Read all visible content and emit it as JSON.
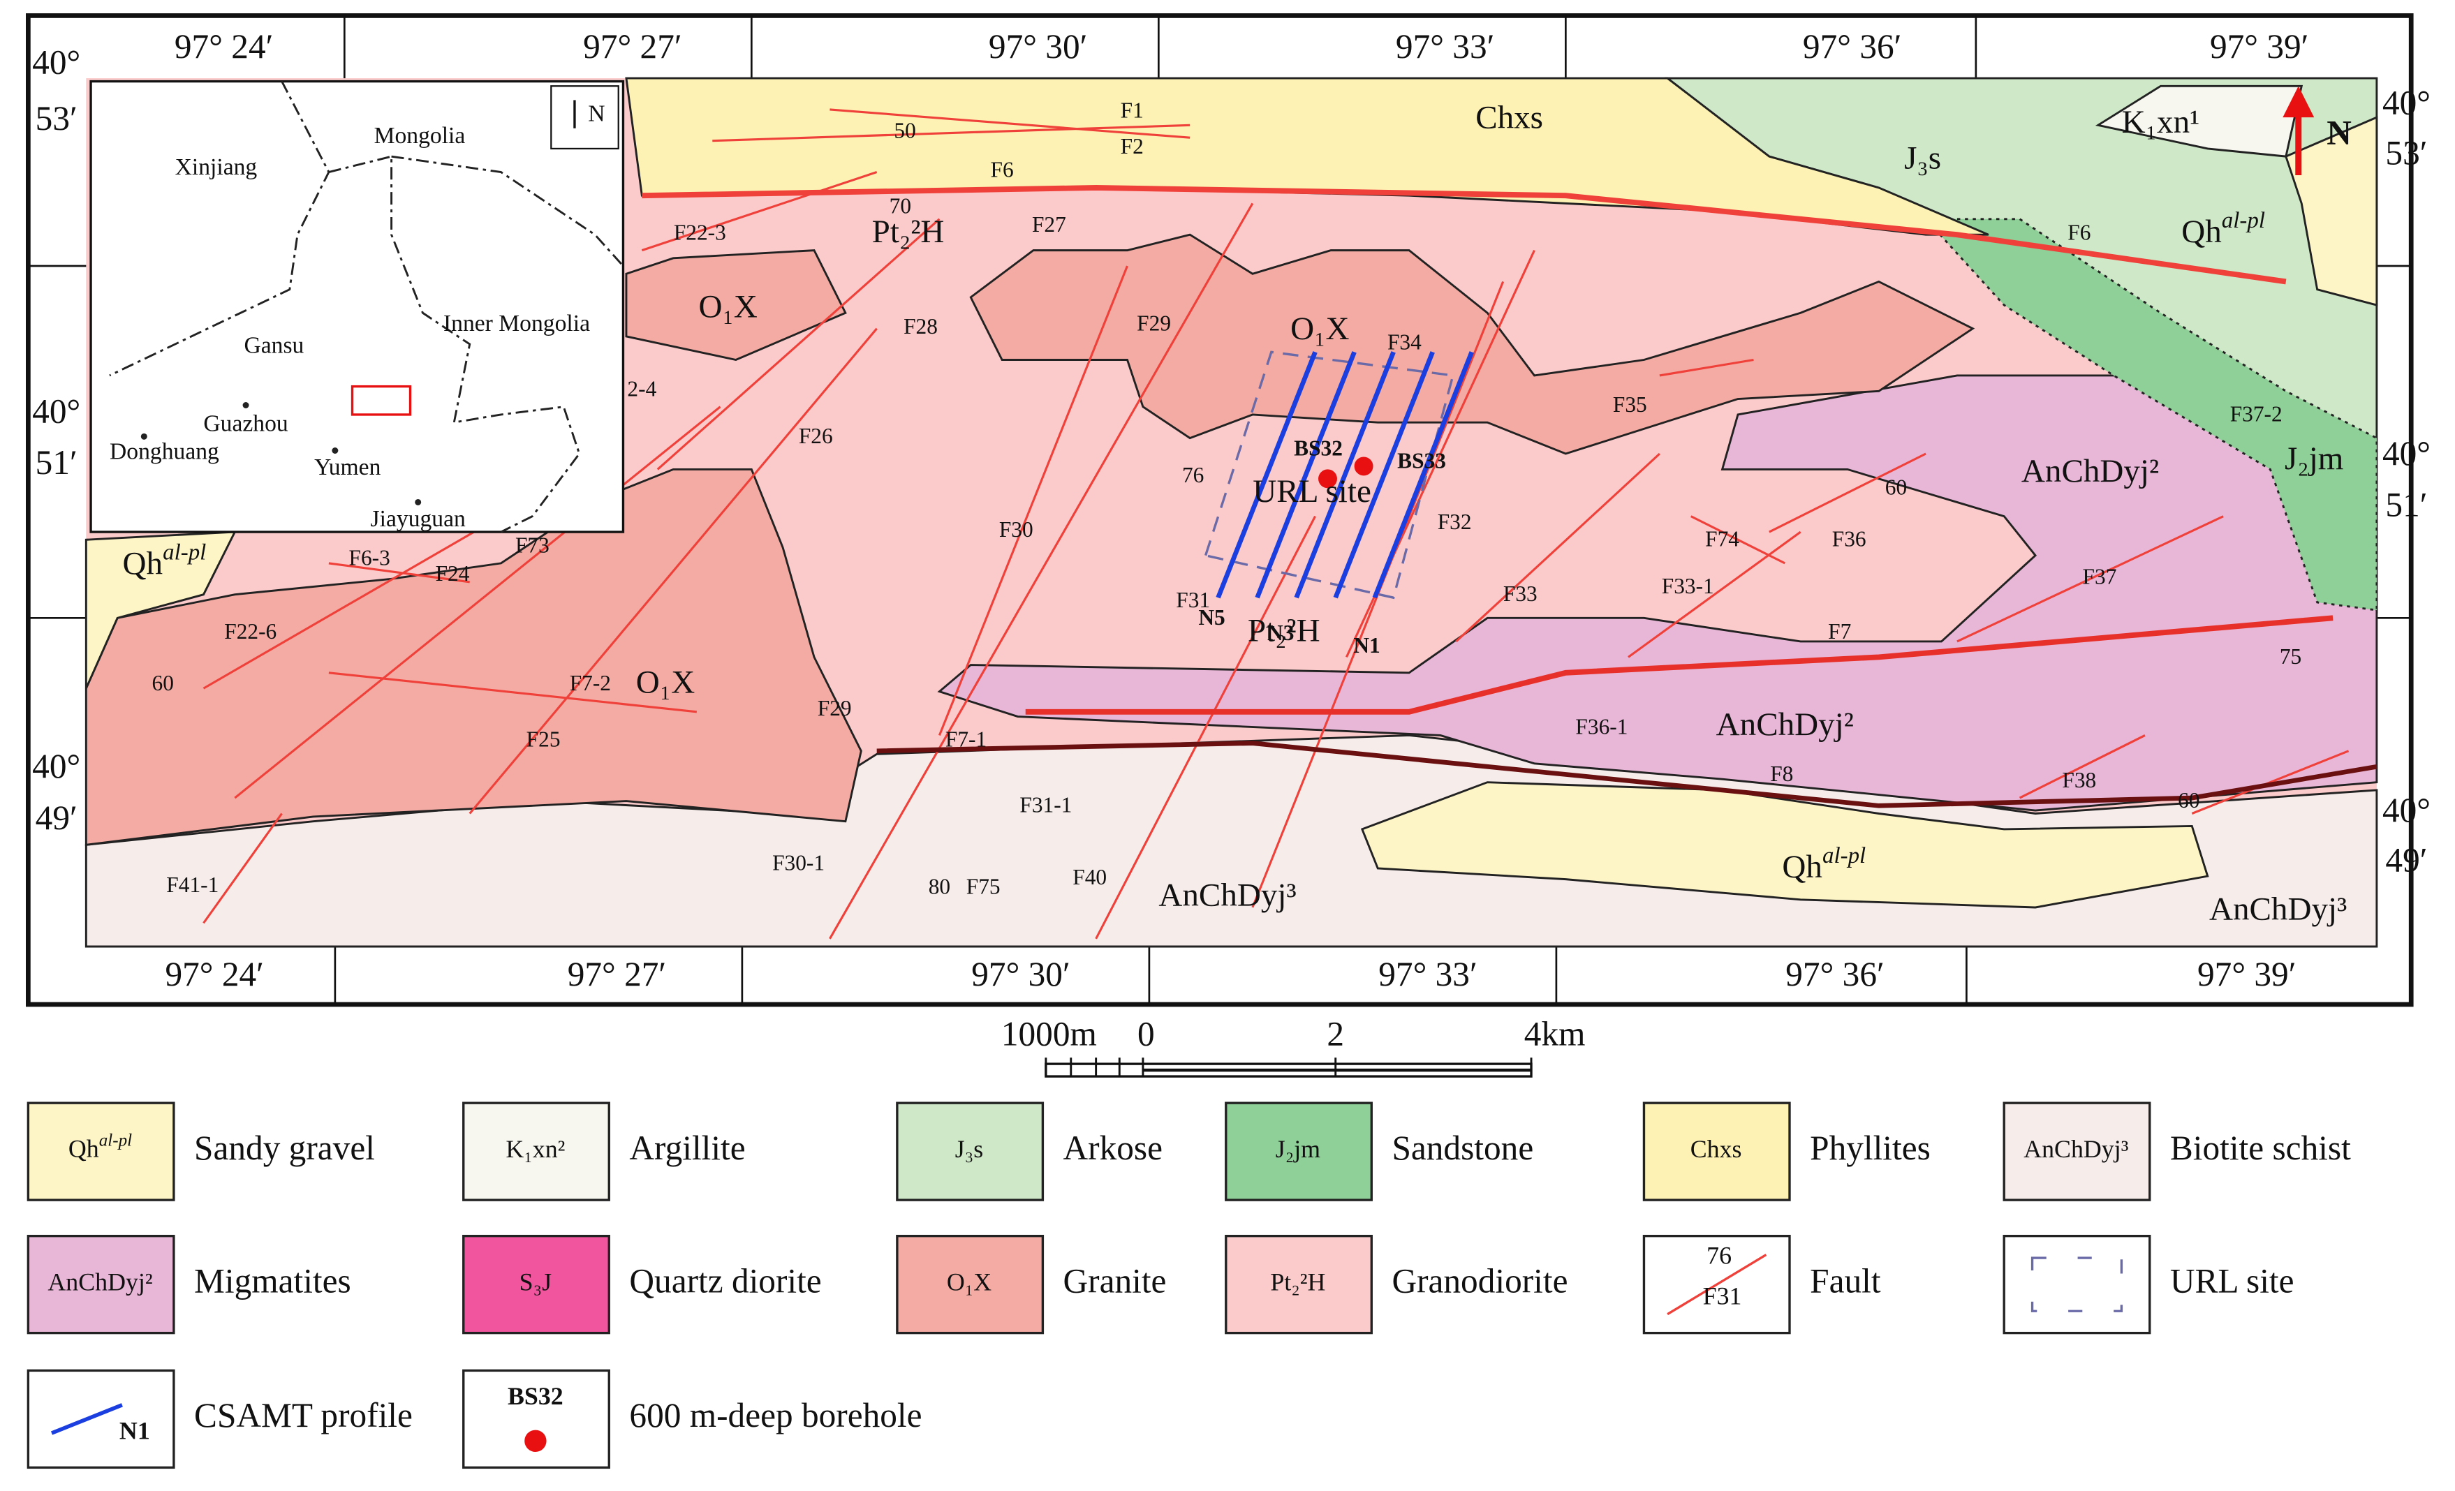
{
  "map": {
    "coordinates": {
      "top": [
        "97° 24′",
        "97° 27′",
        "97° 30′",
        "97° 33′",
        "97° 36′",
        "97° 39′"
      ],
      "bottom": [
        "97° 24′",
        "97° 27′",
        "97° 30′",
        "97° 33′",
        "97° 36′",
        "97° 39′"
      ],
      "left": [
        [
          "40°",
          "53′"
        ],
        [
          "40°",
          "51′"
        ],
        [
          "40°",
          "49′"
        ]
      ],
      "right": [
        [
          "40°",
          "53′"
        ],
        [
          "40°",
          "51′"
        ],
        [
          "40°",
          "49′"
        ]
      ]
    },
    "units": [
      "Chxs",
      "J₃s",
      "K₁xn¹",
      {
        "text": "Qh",
        "sup": "al-pl"
      },
      "J₂jm",
      "AnChDyj²",
      "AnChDyj²",
      {
        "text": "Qh",
        "sup": "al-pl"
      },
      "AnChDyj³",
      "AnChDyj³",
      "Pt₂²H",
      "O₁X",
      "O₁X",
      "URL site",
      "Pt₂²H",
      "O₁X",
      {
        "text": "Qh",
        "sup": "al-pl"
      }
    ],
    "faults": [
      "F1",
      "F2",
      "50",
      "F6",
      "70",
      "F27",
      "F22-3",
      "F28",
      "F29",
      "F34",
      "F26",
      "F35",
      "F37-2",
      "F6",
      "60",
      "F36",
      "F74",
      "F32",
      "F30",
      "F73",
      "F6-3",
      "F24",
      "2-4",
      "76",
      "F31",
      "F33",
      "F33-1",
      "F37",
      "F7",
      "75",
      "F22-6",
      "60",
      "F7-2",
      "F29",
      "F25",
      "F7-1",
      "F36-1",
      "F8",
      "F38",
      "60",
      "F31-1",
      "F30-1",
      "F41-1",
      "80",
      "F75",
      "F40"
    ],
    "profiles": [
      "N5",
      "N3",
      "N1"
    ],
    "boreholes": [
      "BS32",
      "BS33"
    ],
    "north": "N"
  },
  "inset": {
    "labels": [
      "Mongolia",
      "Xinjiang",
      "Gansu",
      "Inner Mongolia",
      "Guazhou",
      "Donghuang",
      "Yumen",
      "Jiayuguan"
    ],
    "north": "N"
  },
  "scale": {
    "labels": [
      "1000m",
      "0",
      "2",
      "4km"
    ]
  },
  "legend": [
    {
      "symbol": {
        "text": "Qh",
        "sup": "al-pl"
      },
      "label": "Sandy gravel"
    },
    {
      "symbol": "K₁xn²",
      "label": "Argillite"
    },
    {
      "symbol": "J₃s",
      "label": "Arkose"
    },
    {
      "symbol": "J₂jm",
      "label": "Sandstone"
    },
    {
      "symbol": "Chxs",
      "label": "Phyllites"
    },
    {
      "symbol": "AnChDyj³",
      "label": "Biotite schist"
    },
    {
      "symbol": "AnChDyj²",
      "label": "Migmatites"
    },
    {
      "symbol": "S₃J",
      "label": "Quartz diorite"
    },
    {
      "symbol": "O₁X",
      "label": "Granite"
    },
    {
      "symbol": "Pt₂²H",
      "label": "Granodiorite"
    },
    {
      "symbol": [
        "76",
        "F31"
      ],
      "label": "Fault"
    },
    {
      "label": "URL site"
    },
    {
      "symbol": "N1",
      "label": "CSAMT profile"
    },
    {
      "symbol": "BS32",
      "label": "600 m-deep borehole"
    }
  ]
}
